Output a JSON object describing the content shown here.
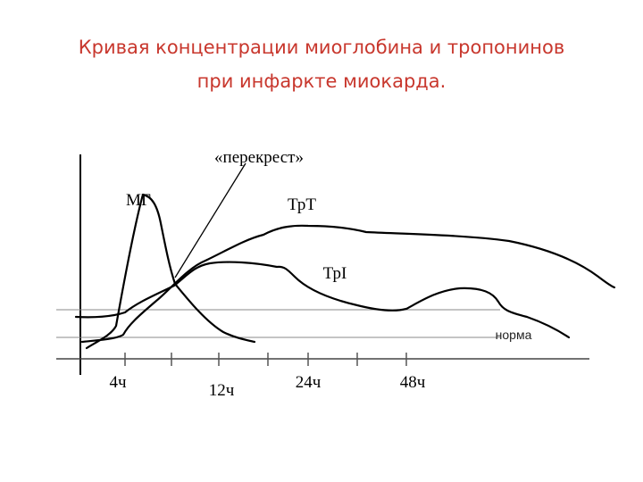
{
  "header": {
    "title_lines": [
      "Кривая концентрации миоглобина и тропонинов",
      "при инфаркте миокарда."
    ]
  },
  "diagram": {
    "crossover_label": "«перекрест»",
    "curve_labels": [
      "МГ",
      "ТрТ",
      "ТрI"
    ],
    "norm_label": "норма",
    "time_labels": [
      "4ч",
      "12ч",
      "24ч",
      "48ч"
    ]
  }
}
